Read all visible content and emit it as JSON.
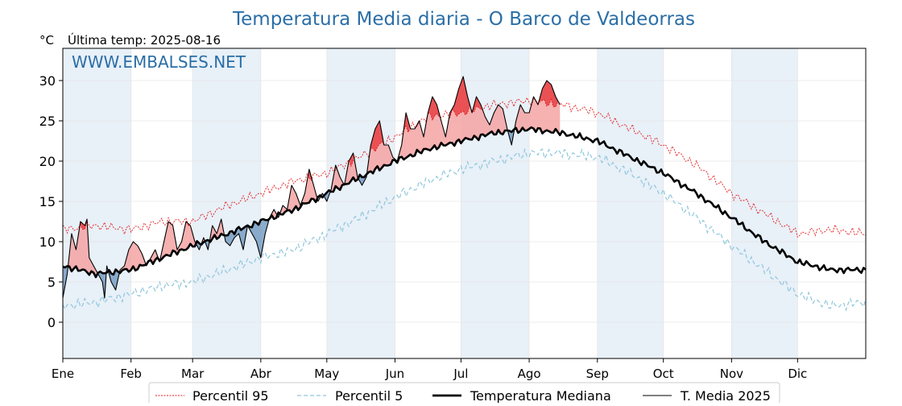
{
  "chart_data": {
    "type": "line",
    "title": "Temperatura Media diaria - O Barco de Valdeorras",
    "unit_label": "°C",
    "subtitle": "Última temp: 2025-08-16",
    "watermark": "WWW.EMBALSES.NET",
    "xlim": [
      0,
      365
    ],
    "ylim": [
      -4.5,
      34
    ],
    "y_ticks": [
      0,
      5,
      10,
      15,
      20,
      25,
      30
    ],
    "x_ticks": [
      {
        "day": 0,
        "label": "Ene"
      },
      {
        "day": 31,
        "label": "Feb"
      },
      {
        "day": 59,
        "label": "Mar"
      },
      {
        "day": 90,
        "label": "Abr"
      },
      {
        "day": 120,
        "label": "May"
      },
      {
        "day": 151,
        "label": "Jun"
      },
      {
        "day": 181,
        "label": "Jul"
      },
      {
        "day": 212,
        "label": "Ago"
      },
      {
        "day": 243,
        "label": "Sep"
      },
      {
        "day": 273,
        "label": "Oct"
      },
      {
        "day": 304,
        "label": "Nov"
      },
      {
        "day": 334,
        "label": "Dic"
      }
    ],
    "shaded_month_bands": [
      [
        0,
        31
      ],
      [
        59,
        90
      ],
      [
        120,
        151
      ],
      [
        181,
        212
      ],
      [
        243,
        273
      ],
      [
        304,
        334
      ]
    ],
    "grid": true,
    "legend_position": "bottom",
    "colors": {
      "p95": "#e31a1c",
      "p5": "#8fc7dc",
      "median": "#000000",
      "current": "#000000",
      "above_fill": "#f4a3a3",
      "above_fill_strong": "#e8474a",
      "below_fill": "#6f99bf",
      "below_fill_strong": "#1c4f87",
      "band": "#e8f0f8",
      "title": "#2a6ea6",
      "watermark": "#2a6ea6"
    },
    "series": [
      {
        "name": "Percentil 95",
        "style": "dashed-thin-red",
        "points": [
          [
            0,
            11.5
          ],
          [
            15,
            12
          ],
          [
            31,
            11.5
          ],
          [
            45,
            12.5
          ],
          [
            59,
            12.5
          ],
          [
            75,
            14.5
          ],
          [
            90,
            16
          ],
          [
            105,
            17.5
          ],
          [
            120,
            18.5
          ],
          [
            135,
            20.5
          ],
          [
            151,
            23
          ],
          [
            166,
            25.5
          ],
          [
            181,
            26
          ],
          [
            196,
            27
          ],
          [
            212,
            27.5
          ],
          [
            227,
            27
          ],
          [
            243,
            26
          ],
          [
            258,
            24
          ],
          [
            273,
            22
          ],
          [
            288,
            19.5
          ],
          [
            304,
            16
          ],
          [
            319,
            13.5
          ],
          [
            334,
            11
          ],
          [
            349,
            11.5
          ],
          [
            365,
            11
          ]
        ]
      },
      {
        "name": "Percentil 5",
        "style": "dashed-thin-lightblue",
        "points": [
          [
            0,
            2
          ],
          [
            15,
            2.5
          ],
          [
            31,
            3.5
          ],
          [
            45,
            4.5
          ],
          [
            59,
            5
          ],
          [
            75,
            6.5
          ],
          [
            90,
            8
          ],
          [
            105,
            9
          ],
          [
            120,
            11
          ],
          [
            135,
            13
          ],
          [
            151,
            15.5
          ],
          [
            166,
            17.5
          ],
          [
            181,
            19
          ],
          [
            196,
            20
          ],
          [
            212,
            21
          ],
          [
            227,
            21
          ],
          [
            243,
            20.5
          ],
          [
            258,
            18.5
          ],
          [
            273,
            16
          ],
          [
            288,
            13
          ],
          [
            304,
            9.5
          ],
          [
            319,
            6.5
          ],
          [
            334,
            3.5
          ],
          [
            349,
            2
          ],
          [
            365,
            2.5
          ]
        ]
      },
      {
        "name": "Temperatura Mediana",
        "style": "solid-thick-black",
        "points": [
          [
            0,
            7
          ],
          [
            15,
            6
          ],
          [
            31,
            6.5
          ],
          [
            45,
            8
          ],
          [
            59,
            9.5
          ],
          [
            75,
            11
          ],
          [
            90,
            12.5
          ],
          [
            105,
            14
          ],
          [
            120,
            16
          ],
          [
            135,
            18
          ],
          [
            151,
            20
          ],
          [
            166,
            21.5
          ],
          [
            181,
            22.5
          ],
          [
            196,
            23.5
          ],
          [
            212,
            24
          ],
          [
            227,
            23.5
          ],
          [
            243,
            22.5
          ],
          [
            258,
            20.5
          ],
          [
            273,
            18.5
          ],
          [
            288,
            16
          ],
          [
            304,
            13
          ],
          [
            319,
            10
          ],
          [
            334,
            7.5
          ],
          [
            349,
            6.5
          ],
          [
            365,
            6.5
          ]
        ]
      },
      {
        "name": "T. Media 2025",
        "style": "solid-thin-black",
        "points": [
          [
            0,
            3
          ],
          [
            2,
            6
          ],
          [
            4,
            11
          ],
          [
            6,
            9
          ],
          [
            8,
            12.5
          ],
          [
            10,
            12
          ],
          [
            11,
            12.8
          ],
          [
            12,
            8
          ],
          [
            14,
            7
          ],
          [
            16,
            6
          ],
          [
            18,
            5
          ],
          [
            19,
            3
          ],
          [
            20,
            7
          ],
          [
            22,
            5
          ],
          [
            24,
            4
          ],
          [
            26,
            6.5
          ],
          [
            28,
            7
          ],
          [
            30,
            9
          ],
          [
            32,
            10
          ],
          [
            34,
            9.5
          ],
          [
            36,
            8.5
          ],
          [
            38,
            7
          ],
          [
            40,
            8
          ],
          [
            42,
            9
          ],
          [
            44,
            7.5
          ],
          [
            46,
            10
          ],
          [
            48,
            12.5
          ],
          [
            50,
            12
          ],
          [
            52,
            9
          ],
          [
            54,
            10
          ],
          [
            56,
            12.5
          ],
          [
            58,
            12
          ],
          [
            60,
            10
          ],
          [
            62,
            9
          ],
          [
            64,
            10.5
          ],
          [
            66,
            9
          ],
          [
            68,
            12
          ],
          [
            70,
            11
          ],
          [
            72,
            12.8
          ],
          [
            74,
            10
          ],
          [
            76,
            9.5
          ],
          [
            78,
            10.5
          ],
          [
            80,
            11
          ],
          [
            82,
            9
          ],
          [
            84,
            12
          ],
          [
            86,
            11
          ],
          [
            88,
            10
          ],
          [
            90,
            8
          ],
          [
            92,
            11
          ],
          [
            94,
            13
          ],
          [
            96,
            14
          ],
          [
            98,
            13
          ],
          [
            100,
            14.5
          ],
          [
            102,
            14
          ],
          [
            104,
            17
          ],
          [
            106,
            16
          ],
          [
            108,
            14.5
          ],
          [
            110,
            16
          ],
          [
            112,
            19
          ],
          [
            114,
            17
          ],
          [
            116,
            15
          ],
          [
            118,
            16
          ],
          [
            120,
            15
          ],
          [
            122,
            16.5
          ],
          [
            124,
            19.5
          ],
          [
            126,
            18
          ],
          [
            128,
            17
          ],
          [
            130,
            20
          ],
          [
            132,
            21
          ],
          [
            134,
            18
          ],
          [
            136,
            17
          ],
          [
            138,
            18
          ],
          [
            140,
            22
          ],
          [
            142,
            24
          ],
          [
            144,
            25
          ],
          [
            146,
            22
          ],
          [
            148,
            22
          ],
          [
            150,
            20.5
          ],
          [
            152,
            20
          ],
          [
            154,
            22
          ],
          [
            156,
            26
          ],
          [
            158,
            24
          ],
          [
            160,
            24
          ],
          [
            162,
            25
          ],
          [
            164,
            23
          ],
          [
            166,
            26
          ],
          [
            168,
            28
          ],
          [
            170,
            27
          ],
          [
            172,
            25
          ],
          [
            174,
            23
          ],
          [
            176,
            26
          ],
          [
            178,
            27
          ],
          [
            180,
            29
          ],
          [
            182,
            30.5
          ],
          [
            184,
            28
          ],
          [
            186,
            26
          ],
          [
            188,
            28
          ],
          [
            190,
            27
          ],
          [
            192,
            25.5
          ],
          [
            194,
            24.5
          ],
          [
            196,
            26
          ],
          [
            198,
            27
          ],
          [
            200,
            26.5
          ],
          [
            202,
            24
          ],
          [
            204,
            22
          ],
          [
            206,
            25
          ],
          [
            208,
            27
          ],
          [
            210,
            26
          ],
          [
            212,
            26
          ],
          [
            214,
            28
          ],
          [
            216,
            27
          ],
          [
            218,
            29
          ],
          [
            220,
            30
          ],
          [
            222,
            29.5
          ],
          [
            224,
            28
          ],
          [
            226,
            27
          ]
        ]
      }
    ]
  }
}
